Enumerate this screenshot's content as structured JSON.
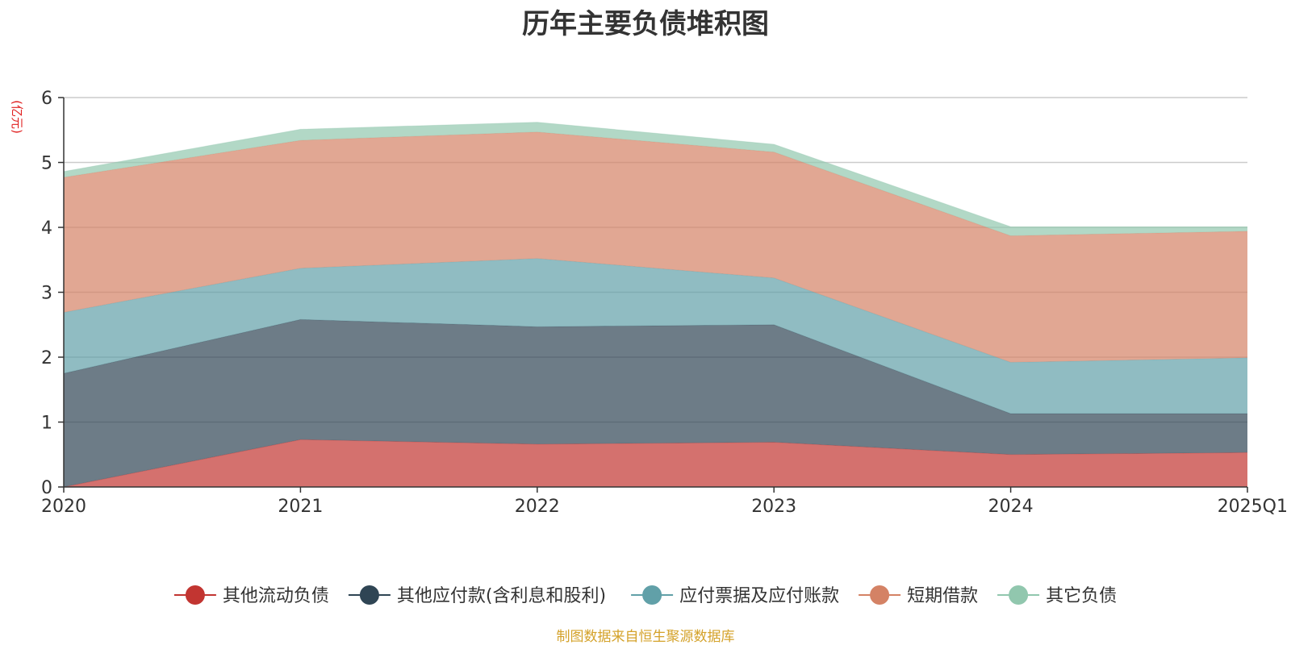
{
  "chart_data": {
    "type": "area",
    "stacked": true,
    "title": "历年主要负债堆积图",
    "ylabel": "(亿元)",
    "categories": [
      "2020",
      "2021",
      "2022",
      "2023",
      "2024",
      "2025Q1"
    ],
    "ylim": [
      0,
      6
    ],
    "yticks": [
      0,
      1,
      2,
      3,
      4,
      5,
      6
    ],
    "grid": true,
    "legend_position": "bottom",
    "series": [
      {
        "name": "其他流动负债",
        "color": "#c23531",
        "values": [
          0.0,
          0.73,
          0.66,
          0.69,
          0.5,
          0.53
        ]
      },
      {
        "name": "其他应付款(含利息和股利)",
        "color": "#2f4554",
        "values": [
          1.75,
          1.85,
          1.81,
          1.81,
          0.63,
          0.6
        ]
      },
      {
        "name": "应付票据及应付账款",
        "color": "#61a0a8",
        "values": [
          0.94,
          0.79,
          1.05,
          0.72,
          0.79,
          0.86
        ]
      },
      {
        "name": "短期借款",
        "color": "#d48265",
        "values": [
          2.08,
          1.97,
          1.95,
          1.94,
          1.95,
          1.95
        ]
      },
      {
        "name": "其它负债",
        "color": "#91c7ae",
        "values": [
          0.09,
          0.17,
          0.15,
          0.12,
          0.14,
          0.07
        ]
      }
    ]
  },
  "source_note": "制图数据来自恒生聚源数据库"
}
